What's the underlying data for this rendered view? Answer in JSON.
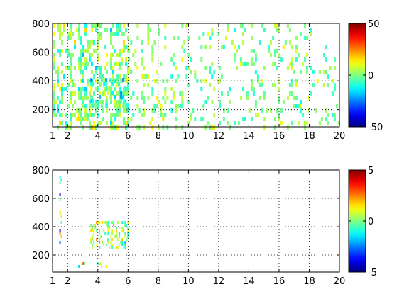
{
  "chart_data": [
    {
      "type": "heatmap",
      "title": "",
      "xlabel": "",
      "ylabel": "",
      "xlim": [
        1,
        20
      ],
      "ylim": [
        80,
        800
      ],
      "xticks": [
        1,
        2,
        4,
        6,
        8,
        10,
        12,
        14,
        16,
        18,
        20
      ],
      "yticks": [
        200,
        400,
        600,
        800
      ],
      "grid": true,
      "colorbar": {
        "clim": [
          -50,
          50
        ],
        "ticks": [
          -50,
          0,
          50
        ],
        "colormap": "jet"
      },
      "regions": [
        {
          "x": [
            1,
            6
          ],
          "y": [
            80,
            800
          ],
          "density": 0.85,
          "value_mean": 0,
          "value_spread": 14
        },
        {
          "x": [
            6,
            12
          ],
          "y": [
            80,
            800
          ],
          "density": 0.35,
          "value_mean": 0,
          "value_spread": 12
        },
        {
          "x": [
            12,
            20
          ],
          "y": [
            80,
            800
          ],
          "density": 0.28,
          "value_mean": 0,
          "value_spread": 12
        },
        {
          "x": [
            3.5,
            6
          ],
          "y": [
            240,
            420
          ],
          "density": 0.95,
          "value_mean": -6,
          "value_spread": 16
        }
      ]
    },
    {
      "type": "heatmap",
      "title": "",
      "xlabel": "",
      "ylabel": "",
      "xlim": [
        1,
        20
      ],
      "ylim": [
        80,
        800
      ],
      "xticks": [
        1,
        2,
        4,
        6,
        8,
        10,
        12,
        14,
        16,
        18,
        20
      ],
      "yticks": [
        200,
        400,
        600,
        800
      ],
      "grid": true,
      "colorbar": {
        "clim": [
          -5,
          5
        ],
        "ticks": [
          -5,
          0,
          5
        ],
        "colormap": "jet"
      },
      "regions": [
        {
          "x": [
            3.5,
            6
          ],
          "y": [
            240,
            440
          ],
          "density": 0.7,
          "value_mean": 0.5,
          "value_spread": 1.8
        },
        {
          "x": [
            1.45,
            1.6
          ],
          "y": [
            280,
            780
          ],
          "density": 0.5,
          "value_mean": 0,
          "value_spread": 4
        },
        {
          "x": [
            2.7,
            4.6
          ],
          "y": [
            120,
            150
          ],
          "density": 0.3,
          "value_mean": 0,
          "value_spread": 3
        }
      ]
    }
  ]
}
